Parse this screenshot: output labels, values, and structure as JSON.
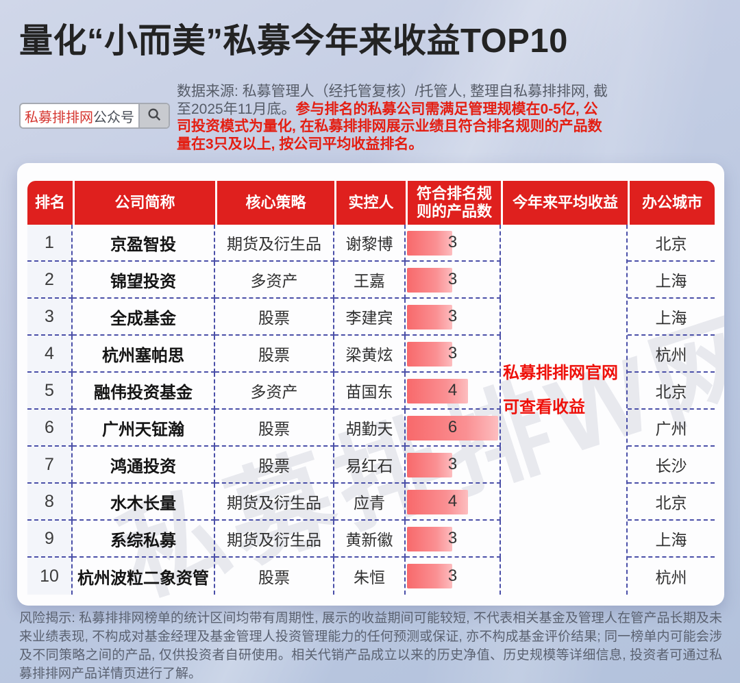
{
  "page": {
    "title": "量化“小而美”私募今年来收益TOP10"
  },
  "search_box": {
    "brand_text": "私募排排网",
    "suffix_text": "公众号",
    "icon": "search-icon"
  },
  "source_note": {
    "plain": "数据来源: 私募管理人（经托管复核）/托管人, 整理自私募排排网, 截至2025年11月底。",
    "highlight": "参与排名的私募公司需满足管理规模在0-5亿, 公司投资模式为量化, 在私募排排网展示业绩且符合排名规则的产品数量在3只及以上, 按公司平均收益排名。"
  },
  "table": {
    "headers": [
      "排名",
      "公司简称",
      "核心策略",
      "实控人",
      "符合排名规则的产品数",
      "今年来平均收益",
      "办公城市"
    ],
    "products_max": 6,
    "merged_column_note": {
      "line1": "私募排排网官网",
      "line2": "可查看收益"
    },
    "rows": [
      {
        "rank": "1",
        "company": "京盈智投",
        "strategy": "期货及衍生品",
        "person": "谢黎博",
        "products": 3,
        "avg_return": "",
        "city": "北京"
      },
      {
        "rank": "2",
        "company": "锦望投资",
        "strategy": "多资产",
        "person": "王嘉",
        "products": 3,
        "avg_return": "",
        "city": "上海"
      },
      {
        "rank": "3",
        "company": "全成基金",
        "strategy": "股票",
        "person": "李建宾",
        "products": 3,
        "avg_return": "",
        "city": "上海"
      },
      {
        "rank": "4",
        "company": "杭州塞帕思",
        "strategy": "股票",
        "person": "梁黄炫",
        "products": 3,
        "avg_return": "",
        "city": "杭州"
      },
      {
        "rank": "5",
        "company": "融伟投资基金",
        "strategy": "多资产",
        "person": "苗国东",
        "products": 4,
        "avg_return": "",
        "city": "北京"
      },
      {
        "rank": "6",
        "company": "广州天钲瀚",
        "strategy": "股票",
        "person": "胡勤天",
        "products": 6,
        "avg_return": "",
        "city": "广州"
      },
      {
        "rank": "7",
        "company": "鸿通投资",
        "strategy": "股票",
        "person": "易红石",
        "products": 3,
        "avg_return": "",
        "city": "长沙"
      },
      {
        "rank": "8",
        "company": "水木长量",
        "strategy": "期货及衍生品",
        "person": "应青",
        "products": 4,
        "avg_return": "",
        "city": "北京"
      },
      {
        "rank": "9",
        "company": "系综私募",
        "strategy": "期货及衍生品",
        "person": "黄新徽",
        "products": 3,
        "avg_return": "",
        "city": "上海"
      },
      {
        "rank": "10",
        "company": "杭州波粒二象资管",
        "strategy": "股票",
        "person": "朱恒",
        "products": 3,
        "avg_return": "",
        "city": "杭州"
      }
    ]
  },
  "watermark_text": "私募排排W网",
  "disclaimer": "风险揭示: 私募排排网榜单的统计区间均带有周期性, 展示的收益期间可能较短, 不代表相关基金及管理人在管产品长期及未来业绩表现, 不构成对基金经理及基金管理人投资管理能力的任何预测或保证, 亦不构成基金评价结果; 同一榜单内可能会涉及不同策略之间的产品, 仅供投资者自研使用。相关代销产品成立以来的历史净值、历史规模等详细信息, 投资者可通过私募排排网产品详情页进行了解。",
  "colors": {
    "header_red": "#df201e",
    "note_red": "#ee100a",
    "source_red": "#e41e12",
    "bar_gradient_start": "#f8696b",
    "bar_gradient_end": "#fdbdbf",
    "dashed_border": "#4a4fa8",
    "rank_column_bg": "#f3f5fa",
    "page_bg": "#c2cce3"
  },
  "chart_data": {
    "type": "table",
    "title": "量化“小而美”私募今年来收益TOP10",
    "columns": [
      "排名",
      "公司简称",
      "核心策略",
      "实控人",
      "符合排名规则的产品数",
      "今年来平均收益",
      "办公城市"
    ],
    "rows": [
      [
        1,
        "京盈智投",
        "期货及衍生品",
        "谢黎博",
        3,
        "",
        "北京"
      ],
      [
        2,
        "锦望投资",
        "多资产",
        "王嘉",
        3,
        "",
        "上海"
      ],
      [
        3,
        "全成基金",
        "股票",
        "李建宾",
        3,
        "",
        "上海"
      ],
      [
        4,
        "杭州塞帕思",
        "股票",
        "梁黄炫",
        3,
        "",
        "杭州"
      ],
      [
        5,
        "融伟投资基金",
        "多资产",
        "苗国东",
        4,
        "",
        "北京"
      ],
      [
        6,
        "广州天钲瀚",
        "股票",
        "胡勤天",
        6,
        "",
        "广州"
      ],
      [
        7,
        "鸿通投资",
        "股票",
        "易红石",
        3,
        "",
        "长沙"
      ],
      [
        8,
        "水木长量",
        "期货及衍生品",
        "应青",
        4,
        "",
        "北京"
      ],
      [
        9,
        "系综私募",
        "期货及衍生品",
        "黄新徽",
        3,
        "",
        "上海"
      ],
      [
        10,
        "杭州波粒二象资管",
        "股票",
        "朱恒",
        3,
        "",
        "杭州"
      ]
    ],
    "databar_column": "符合排名规则的产品数",
    "databar_range": [
      0,
      6
    ],
    "notes": "今年来平均收益列数值未展示, 列内标注: 私募排排网官网可查看收益"
  }
}
